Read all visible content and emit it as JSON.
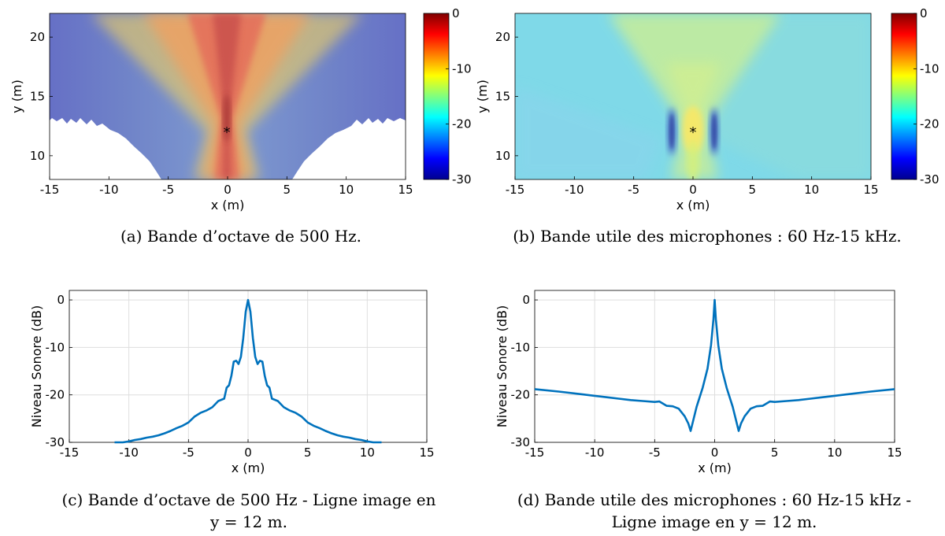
{
  "panels": [
    {
      "id": "a",
      "kind": "heatmap",
      "xlabel": "x (m)",
      "ylabel": "y (m)",
      "xlim": [
        -15,
        15
      ],
      "ylim": [
        8,
        22
      ],
      "xticks": [
        "-15",
        "-10",
        "-5",
        "0",
        "5",
        "10",
        "15"
      ],
      "yticks": [
        "10",
        "15",
        "20"
      ],
      "colorbar": {
        "range": [
          -30,
          0
        ],
        "ticks": [
          "0",
          "-10",
          "-20",
          "-30"
        ]
      },
      "source_marker": {
        "x": 0,
        "y": 12,
        "symbol": "*"
      },
      "caption": [
        "(a) Bande d’octave de 500 Hz."
      ]
    },
    {
      "id": "b",
      "kind": "heatmap",
      "xlabel": "x (m)",
      "ylabel": "y (m)",
      "xlim": [
        -15,
        15
      ],
      "ylim": [
        8,
        22
      ],
      "xticks": [
        "-15",
        "-10",
        "-5",
        "0",
        "5",
        "10",
        "15"
      ],
      "yticks": [
        "10",
        "15",
        "20"
      ],
      "colorbar": {
        "range": [
          -30,
          0
        ],
        "ticks": [
          "0",
          "-10",
          "-20",
          "-30"
        ]
      },
      "source_marker": {
        "x": 0,
        "y": 12,
        "symbol": "*"
      },
      "caption": [
        "(b) Bande utile des microphones : 60 Hz-15 kHz."
      ]
    },
    {
      "id": "c",
      "kind": "line",
      "xlabel": "x (m)",
      "ylabel": "Niveau Sonore (dB)",
      "xlim": [
        -15,
        15
      ],
      "ylim": [
        -30,
        2
      ],
      "xticks": [
        "-15",
        "-10",
        "-5",
        "0",
        "5",
        "10",
        "15"
      ],
      "yticks": [
        "0",
        "-10",
        "-20",
        "-30"
      ],
      "caption": [
        "(c) Bande d’octave de 500 Hz - Ligne image en",
        "y = 12 m."
      ]
    },
    {
      "id": "d",
      "kind": "line",
      "xlabel": "x (m)",
      "ylabel": "Niveau Sonore (dB)",
      "xlim": [
        -15,
        15
      ],
      "ylim": [
        -30,
        2
      ],
      "xticks": [
        "-15",
        "-10",
        "-5",
        "0",
        "5",
        "10",
        "15"
      ],
      "yticks": [
        "0",
        "-10",
        "-20",
        "-30"
      ],
      "caption": [
        "(d) Bande utile des microphones : 60 Hz-15 kHz -",
        "Ligne image en y = 12 m."
      ]
    }
  ],
  "chart_data": [
    {
      "type": "heatmap",
      "xlabel": "x (m)",
      "ylabel": "y (m)",
      "xlim": [
        -15,
        15
      ],
      "ylim": [
        8,
        22
      ],
      "zlim": [
        -30,
        0
      ],
      "grid": false
    },
    {
      "type": "heatmap",
      "xlabel": "x (m)",
      "ylabel": "y (m)",
      "xlim": [
        -15,
        15
      ],
      "ylim": [
        8,
        22
      ],
      "zlim": [
        -30,
        0
      ],
      "grid": false
    },
    {
      "type": "line",
      "xlabel": "x (m)",
      "ylabel": "Niveau Sonore (dB)",
      "xlim": [
        -15,
        15
      ],
      "ylim": [
        -30,
        2
      ],
      "grid": true,
      "series": [
        {
          "color": "#0072BD",
          "x": [
            -11.2,
            -10.5,
            -10,
            -9.5,
            -9,
            -8.5,
            -8,
            -7.5,
            -7,
            -6.5,
            -6,
            -5.5,
            -5,
            -4.5,
            -4,
            -3.5,
            -3,
            -2.5,
            -2,
            -1.8,
            -1.6,
            -1.4,
            -1.2,
            -1.0,
            -0.8,
            -0.6,
            -0.4,
            -0.2,
            0,
            0.2,
            0.4,
            0.6,
            0.8,
            1.0,
            1.2,
            1.4,
            1.6,
            1.8,
            2,
            2.5,
            3,
            3.5,
            4,
            4.5,
            5,
            5.5,
            6,
            6.5,
            7,
            7.5,
            8,
            8.5,
            9,
            9.5,
            10,
            10.5,
            11.2
          ],
          "y": [
            -30,
            -30,
            -29.8,
            -29.5,
            -29.3,
            -29.0,
            -28.8,
            -28.5,
            -28.1,
            -27.6,
            -27.0,
            -26.5,
            -25.8,
            -24.6,
            -23.8,
            -23.3,
            -22.6,
            -21.3,
            -20.8,
            -18.5,
            -18.0,
            -16.0,
            -13.0,
            -12.8,
            -13.5,
            -12.0,
            -8.0,
            -2.5,
            0,
            -2.5,
            -8.0,
            -12.0,
            -13.5,
            -12.8,
            -13.0,
            -16.0,
            -18.0,
            -18.5,
            -20.8,
            -21.3,
            -22.6,
            -23.3,
            -23.8,
            -24.6,
            -25.8,
            -26.5,
            -27.0,
            -27.6,
            -28.1,
            -28.5,
            -28.8,
            -29.0,
            -29.3,
            -29.5,
            -29.8,
            -30,
            -30
          ]
        }
      ]
    },
    {
      "type": "line",
      "xlabel": "x (m)",
      "ylabel": "Niveau Sonore (dB)",
      "xlim": [
        -15,
        15
      ],
      "ylim": [
        -30,
        2
      ],
      "grid": true,
      "series": [
        {
          "color": "#0072BD",
          "x": [
            -15,
            -13,
            -11,
            -10,
            -9,
            -8,
            -7,
            -6,
            -5,
            -4.6,
            -4,
            -3.5,
            -3,
            -2.5,
            -2.2,
            -2.0,
            -1.5,
            -1.0,
            -0.6,
            -0.3,
            -0.1,
            0,
            0.1,
            0.3,
            0.6,
            1.0,
            1.5,
            2.0,
            2.2,
            2.5,
            3,
            3.5,
            4,
            4.6,
            5,
            6,
            7,
            8,
            9,
            10,
            11,
            13,
            15
          ],
          "y": [
            -18.8,
            -19.3,
            -19.9,
            -20.2,
            -20.5,
            -20.8,
            -21.1,
            -21.3,
            -21.5,
            -21.4,
            -22.3,
            -22.4,
            -22.9,
            -24.5,
            -26.0,
            -27.6,
            -22.5,
            -18.5,
            -14.5,
            -9.5,
            -4.0,
            0,
            -4.0,
            -9.5,
            -14.5,
            -18.5,
            -22.5,
            -27.6,
            -26.0,
            -24.5,
            -22.9,
            -22.4,
            -22.3,
            -21.4,
            -21.5,
            -21.3,
            -21.1,
            -20.8,
            -20.5,
            -20.2,
            -19.9,
            -19.3,
            -18.8
          ]
        }
      ]
    }
  ]
}
